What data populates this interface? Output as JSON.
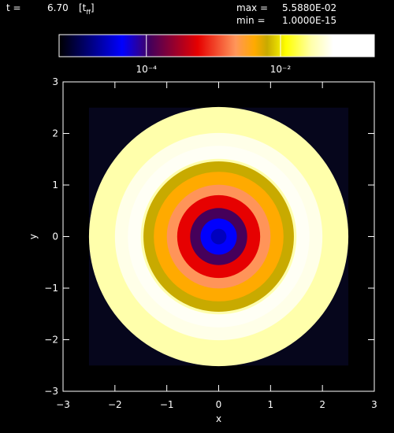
{
  "header": {
    "t_label": "t =",
    "t_value": "6.70",
    "unit_open": "[t",
    "unit_sub": "ff",
    "unit_close": "]",
    "max_label": "max =",
    "max_value": "5.5880E-02",
    "min_label": "min =",
    "min_value": "1.0000E-15"
  },
  "chart_data": {
    "type": "radial-map",
    "x_label": "x",
    "y_label": "y",
    "xlim": [
      -3,
      3
    ],
    "ylim": [
      -3,
      3
    ],
    "xticks": [
      {
        "value": -3,
        "label": "−3"
      },
      {
        "value": -2,
        "label": "−2"
      },
      {
        "value": -1,
        "label": "−1"
      },
      0,
      1,
      2,
      3
    ],
    "yticks": [
      {
        "value": -3,
        "label": "−3"
      },
      {
        "value": -2,
        "label": "−2"
      },
      {
        "value": -1,
        "label": "−1"
      },
      0,
      1,
      2,
      3
    ],
    "log_scale": true,
    "colorbar_lim": [
      5e-06,
      0.25
    ],
    "colorbar_ticks": [
      {
        "value": 0.0001,
        "label": "10⁻⁴"
      },
      {
        "value": 0.01,
        "label": "10⁻²"
      }
    ],
    "domain_half_width": 2.5,
    "background_value": 1e-15,
    "rings": {
      "r": [
        2.5,
        2.0,
        1.75,
        1.5,
        1.45,
        1.25,
        1.0,
        0.8,
        0.55,
        0.35,
        0.15
      ],
      "values": [
        0.029,
        0.05,
        0.0559,
        0.03,
        0.0063,
        0.0041,
        0.0021,
        0.00059,
        0.000115,
        4.4e-05,
        2.5e-05
      ]
    }
  }
}
